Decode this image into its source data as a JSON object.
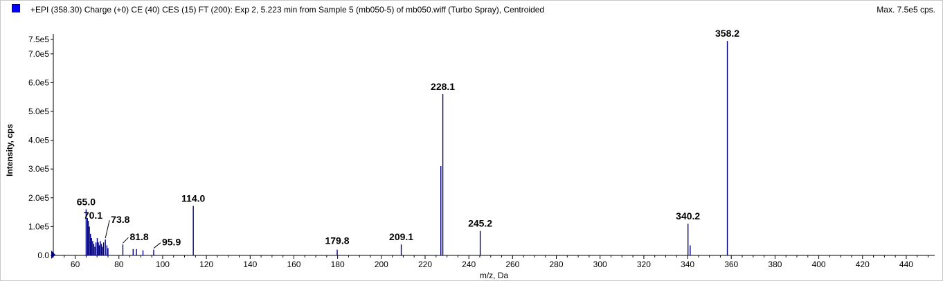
{
  "header": {
    "title": "+EPI (358.30) Charge (+0) CE (40) CES (15) FT (200): Exp 2, 5.223 min from Sample 5 (mb050-5) of mb050.wiff (Turbo Spray), Centroided",
    "max_label": "Max. 7.5e5 cps."
  },
  "colors": {
    "series": "#000080",
    "marker": "#0000ff"
  },
  "chart_data": {
    "type": "bar",
    "title": "+EPI (358.30) Charge (+0) CE (40) CES (15) FT (200): Exp 2, 5.223 min from Sample 5 (mb050-5) of mb050.wiff (Turbo Spray), Centroided",
    "xlabel": "m/z, Da",
    "ylabel": "Intensity, cps",
    "xlim": [
      50,
      453
    ],
    "ylim": [
      0,
      750000
    ],
    "x_ticks": [
      60,
      80,
      100,
      120,
      140,
      160,
      180,
      200,
      220,
      240,
      260,
      280,
      300,
      320,
      340,
      360,
      380,
      400,
      420,
      440
    ],
    "y_ticks": [
      {
        "value": 0,
        "label": "0.0"
      },
      {
        "value": 100000,
        "label": "1.0e5"
      },
      {
        "value": 200000,
        "label": "2.0e5"
      },
      {
        "value": 300000,
        "label": "3.0e5"
      },
      {
        "value": 400000,
        "label": "4.0e5"
      },
      {
        "value": 500000,
        "label": "5.0e5"
      },
      {
        "value": 600000,
        "label": "6.0e5"
      },
      {
        "value": 700000,
        "label": "7.0e5"
      },
      {
        "value": 750000,
        "label": "7.5e5"
      }
    ],
    "peaks": [
      {
        "x": 65.0,
        "y": 160000
      },
      {
        "x": 65.6,
        "y": 130000
      },
      {
        "x": 66.0,
        "y": 120000
      },
      {
        "x": 66.5,
        "y": 100000
      },
      {
        "x": 67.0,
        "y": 75000
      },
      {
        "x": 67.5,
        "y": 60000
      },
      {
        "x": 68.0,
        "y": 50000
      },
      {
        "x": 68.5,
        "y": 40000
      },
      {
        "x": 69.0,
        "y": 30000
      },
      {
        "x": 69.5,
        "y": 45000
      },
      {
        "x": 70.1,
        "y": 60000
      },
      {
        "x": 70.6,
        "y": 45000
      },
      {
        "x": 71.0,
        "y": 35000
      },
      {
        "x": 71.5,
        "y": 50000
      },
      {
        "x": 72.0,
        "y": 40000
      },
      {
        "x": 72.5,
        "y": 30000
      },
      {
        "x": 73.0,
        "y": 45000
      },
      {
        "x": 73.8,
        "y": 55000
      },
      {
        "x": 74.5,
        "y": 35000
      },
      {
        "x": 75.0,
        "y": 25000
      },
      {
        "x": 81.8,
        "y": 38000
      },
      {
        "x": 86.5,
        "y": 22000
      },
      {
        "x": 88.0,
        "y": 22000
      },
      {
        "x": 91.0,
        "y": 18000
      },
      {
        "x": 95.9,
        "y": 20000
      },
      {
        "x": 114.0,
        "y": 172000
      },
      {
        "x": 179.8,
        "y": 20000
      },
      {
        "x": 209.1,
        "y": 38000
      },
      {
        "x": 227.2,
        "y": 310000
      },
      {
        "x": 228.1,
        "y": 560000
      },
      {
        "x": 245.2,
        "y": 85000
      },
      {
        "x": 340.2,
        "y": 110000
      },
      {
        "x": 341.2,
        "y": 35000
      },
      {
        "x": 358.2,
        "y": 745000
      }
    ],
    "annotations": [
      {
        "text": "65.0",
        "x": 65.0,
        "y": 160000
      },
      {
        "text": "70.1",
        "x": 70.1,
        "y": 60000
      },
      {
        "text": "73.8",
        "x": 73.8,
        "y": 55000
      },
      {
        "text": "81.8",
        "x": 81.8,
        "y": 38000
      },
      {
        "text": "95.9",
        "x": 95.9,
        "y": 20000
      },
      {
        "text": "114.0",
        "x": 114.0,
        "y": 172000
      },
      {
        "text": "179.8",
        "x": 179.8,
        "y": 20000
      },
      {
        "text": "209.1",
        "x": 209.1,
        "y": 38000
      },
      {
        "text": "228.1",
        "x": 228.1,
        "y": 560000
      },
      {
        "text": "245.2",
        "x": 245.2,
        "y": 85000
      },
      {
        "text": "340.2",
        "x": 340.2,
        "y": 110000
      },
      {
        "text": "358.2",
        "x": 358.2,
        "y": 745000
      }
    ]
  }
}
